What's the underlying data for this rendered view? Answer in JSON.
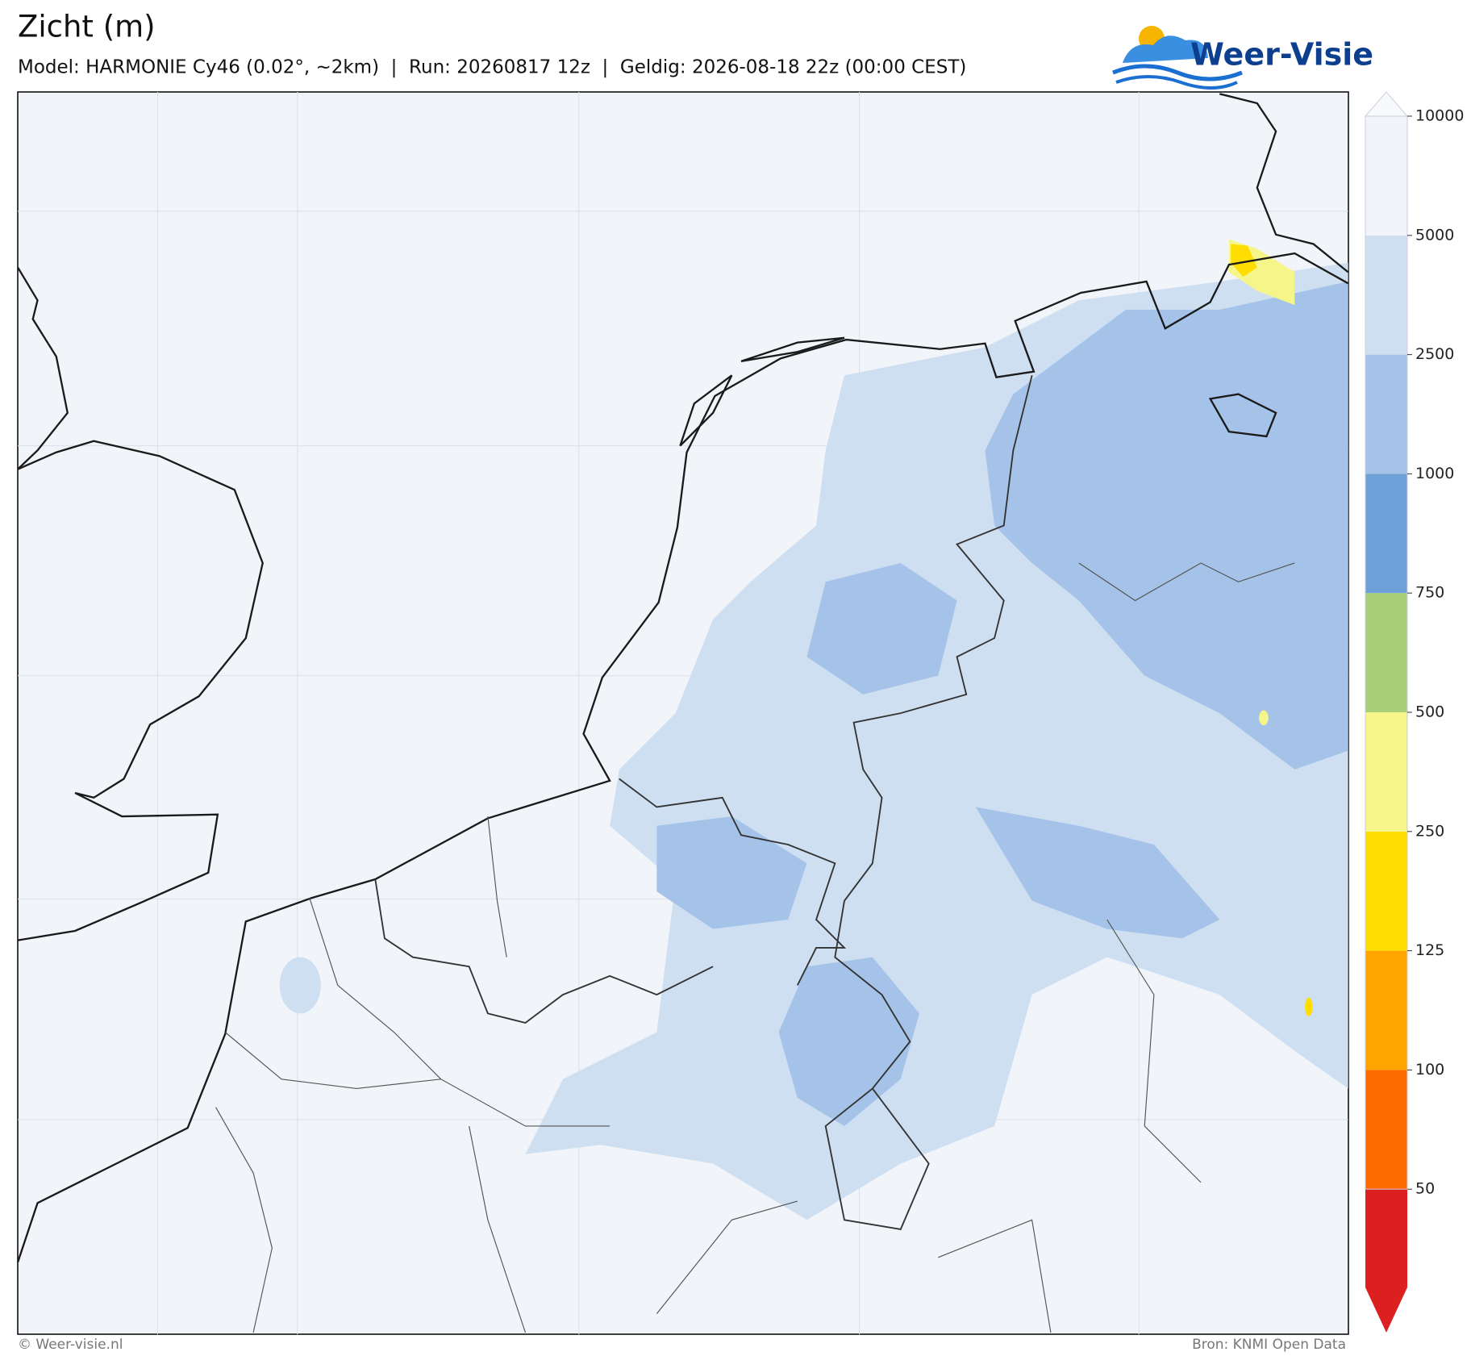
{
  "header": {
    "title": "Zicht (m)",
    "subtitle": "Model: HARMONIE Cy46 (0.02°, ~2km)  |  Run: 20260817 12z  |  Geldig: 2026-08-18 22z (00:00 CEST)"
  },
  "logo": {
    "text": "Weer-Visie"
  },
  "colorbar": {
    "ticks": [
      50,
      100,
      125,
      250,
      500,
      750,
      1000,
      2500,
      5000,
      10000
    ],
    "colors": [
      "#dc2020",
      "#ff6a00",
      "#ffa500",
      "#ffdd00",
      "#f5f58a",
      "#a8cf78",
      "#6fa0d8",
      "#a5c3e8",
      "#cfdff2",
      "#f1f5fa",
      "#f7f9fc"
    ]
  },
  "footer": {
    "left": "© Weer-visie.nl",
    "right": "Bron: KNMI Open Data"
  }
}
